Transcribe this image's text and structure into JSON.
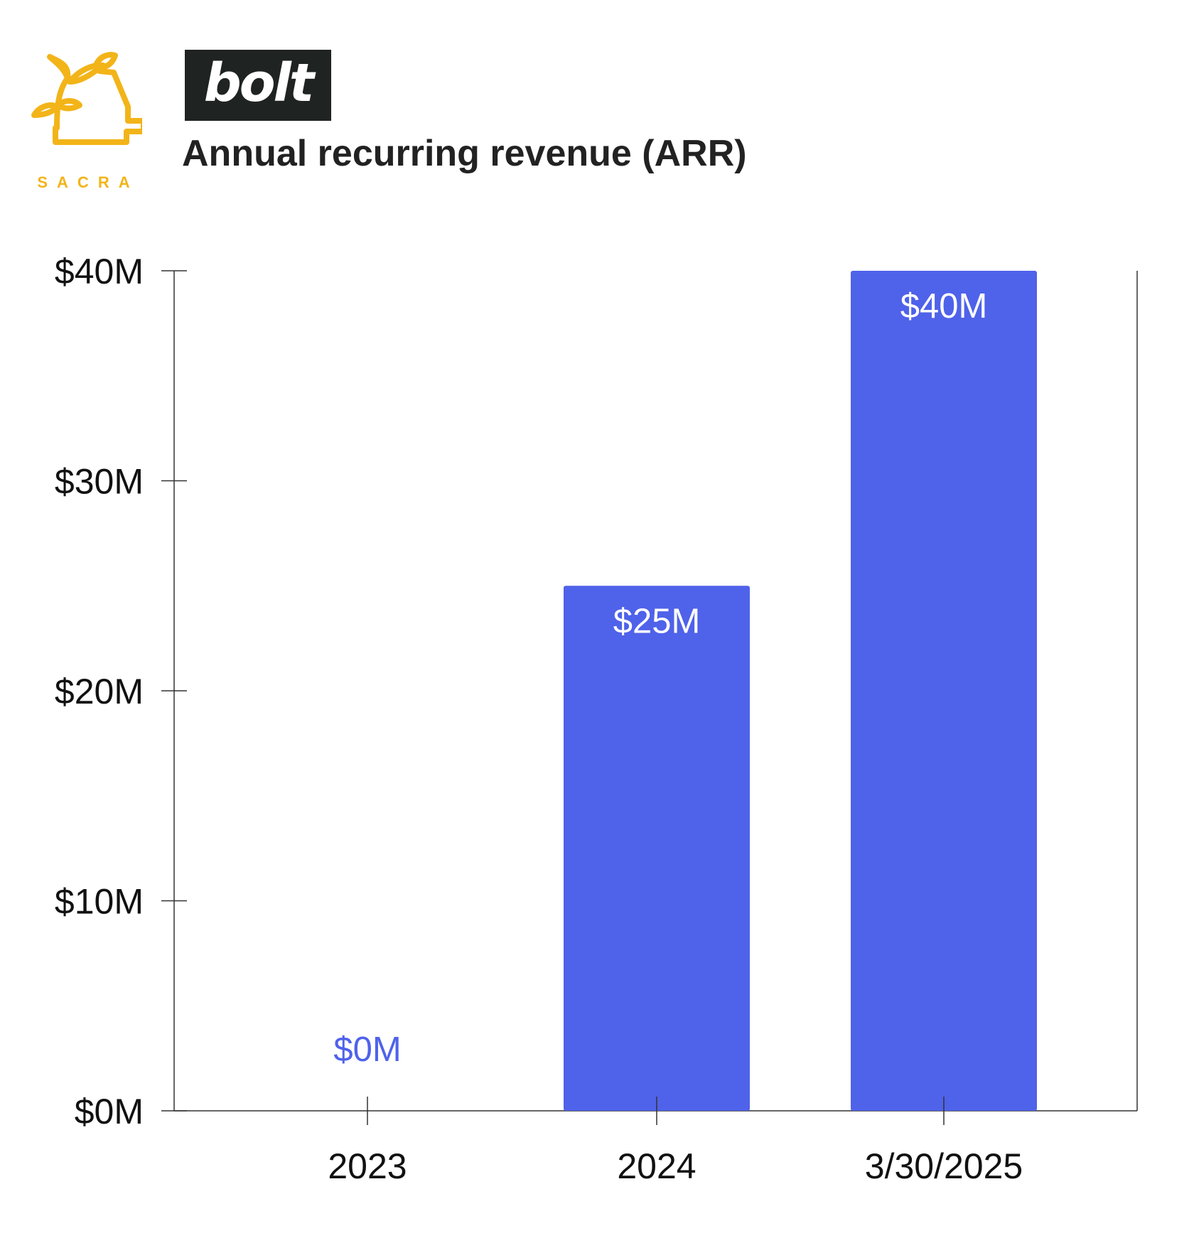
{
  "brand": {
    "sacra_wordmark": "SACRA",
    "bolt_logo_text": "bolt"
  },
  "colors": {
    "bar": "#4F62EA",
    "sacra_gold": "#F2B418",
    "axis": "#333333"
  },
  "chart_data": {
    "type": "bar",
    "title": "Annual recurring revenue (ARR)",
    "categories": [
      "2023",
      "2024",
      "3/30/2025"
    ],
    "values": [
      0,
      25,
      40
    ],
    "data_labels": [
      "$0M",
      "$25M",
      "$40M"
    ],
    "ylim": [
      0,
      40
    ],
    "yticks": [
      0,
      10,
      20,
      30,
      40
    ],
    "ytick_labels": [
      "$0M",
      "$10M",
      "$20M",
      "$30M",
      "$40M"
    ],
    "xlabel": "",
    "ylabel": "",
    "grid": false,
    "legend": "none"
  }
}
